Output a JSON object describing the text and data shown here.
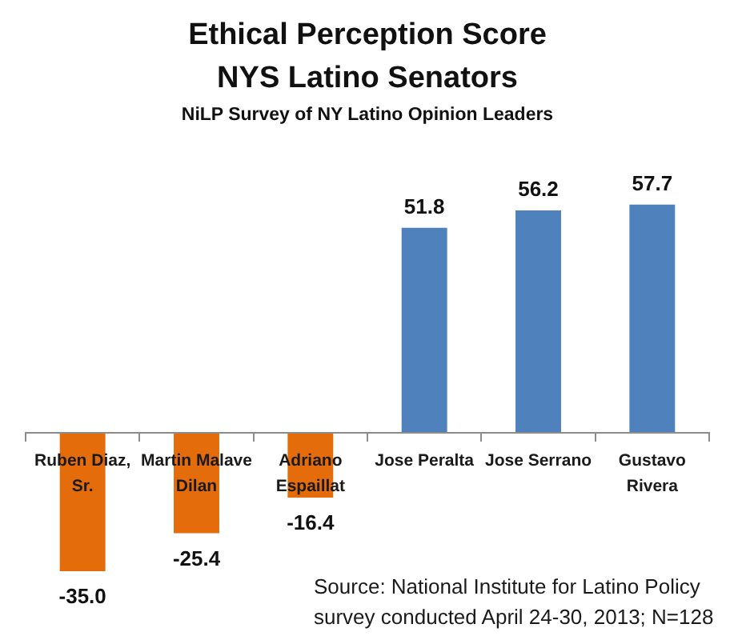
{
  "chart_data": {
    "type": "bar",
    "title": "Ethical Perception Score\nNYS Latino Senators",
    "subtitle": "NiLP Survey of NY Latino Opinion Leaders",
    "categories": [
      "Ruben Diaz, Sr.",
      "Martin Malave Dilan",
      "Adriano Espaillat",
      "Jose Peralta",
      "Jose Serrano",
      "Gustavo Rivera"
    ],
    "values": [
      -35.0,
      -25.4,
      -16.4,
      51.8,
      56.2,
      57.7
    ],
    "colors": [
      "#e46c0a",
      "#e46c0a",
      "#e46c0a",
      "#4f81bd",
      "#4f81bd",
      "#4f81bd"
    ],
    "value_labels": [
      "-35.0",
      "-25.4",
      "-16.4",
      "51.8",
      "56.2",
      "57.7"
    ],
    "tick_labels": "x",
    "annotations": [
      "Source: National Institute for Latino Policy survey conducted April 24-30, 2013; N=128"
    ]
  }
}
